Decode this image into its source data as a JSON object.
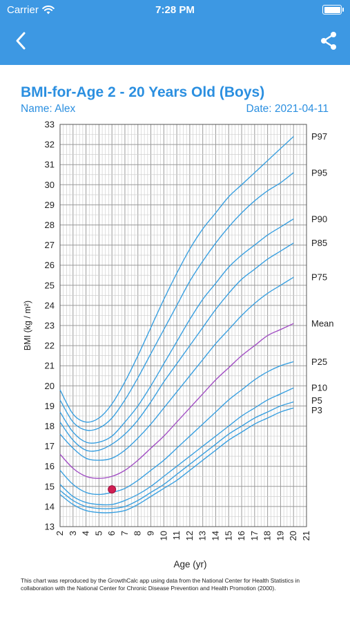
{
  "status_bar": {
    "carrier": "Carrier",
    "time": "7:28 PM",
    "wifi_icon": "wifi-icon",
    "battery_icon": "battery-icon"
  },
  "nav": {
    "back_icon": "chevron-left-icon",
    "share_icon": "share-icon",
    "background": "#3d98e3"
  },
  "header": {
    "title": "BMI-for-Age 2 - 20 Years Old (Boys)",
    "name": "Name: Alex",
    "date": "Date: 2021-04-11"
  },
  "footnote": "This chart was reproduced by the GrowthCalc app using data from the National Center for Health Statistics in collaboration with the National Center for Chronic Disease Prevention and Health Promotion (2000).",
  "chart_data": {
    "type": "line",
    "title": "BMI-for-Age 2 - 20 Years Old (Boys)",
    "xlabel": "Age (yr)",
    "ylabel": "BMI (kg / m²)",
    "xlim": [
      2,
      21
    ],
    "ylim": [
      13,
      33
    ],
    "x_ticks": [
      2,
      3,
      4,
      5,
      6,
      7,
      8,
      9,
      10,
      11,
      12,
      13,
      14,
      15,
      16,
      17,
      18,
      19,
      20,
      21
    ],
    "y_ticks": [
      13,
      14,
      15,
      16,
      17,
      18,
      19,
      20,
      21,
      22,
      23,
      24,
      25,
      26,
      27,
      28,
      29,
      30,
      31,
      32,
      33
    ],
    "grid": true,
    "legend": "right-labels",
    "x": [
      2,
      3,
      4,
      5,
      6,
      7,
      8,
      9,
      10,
      11,
      12,
      13,
      14,
      15,
      16,
      17,
      18,
      19,
      20
    ],
    "series": [
      {
        "name": "P97",
        "color": "#3aa0e0",
        "values": [
          19.8,
          18.6,
          18.2,
          18.4,
          19.1,
          20.2,
          21.5,
          22.9,
          24.3,
          25.6,
          26.8,
          27.8,
          28.6,
          29.4,
          30.0,
          30.6,
          31.2,
          31.8,
          32.4
        ]
      },
      {
        "name": "P95",
        "color": "#3aa0e0",
        "values": [
          19.3,
          18.2,
          17.8,
          17.9,
          18.4,
          19.3,
          20.4,
          21.6,
          22.8,
          24.0,
          25.2,
          26.2,
          27.1,
          27.9,
          28.6,
          29.2,
          29.7,
          30.1,
          30.6
        ]
      },
      {
        "name": "P90",
        "color": "#3aa0e0",
        "values": [
          18.7,
          17.7,
          17.2,
          17.2,
          17.5,
          18.2,
          19.0,
          20.0,
          21.1,
          22.2,
          23.3,
          24.3,
          25.1,
          25.9,
          26.5,
          27.0,
          27.5,
          27.9,
          28.3
        ]
      },
      {
        "name": "P85",
        "color": "#3aa0e0",
        "values": [
          18.2,
          17.3,
          16.8,
          16.8,
          17.1,
          17.6,
          18.3,
          19.2,
          20.2,
          21.1,
          22.0,
          22.9,
          23.8,
          24.6,
          25.3,
          25.8,
          26.3,
          26.7,
          27.1
        ]
      },
      {
        "name": "P75",
        "color": "#3aa0e0",
        "values": [
          17.6,
          16.9,
          16.4,
          16.3,
          16.4,
          16.8,
          17.4,
          18.1,
          18.9,
          19.7,
          20.5,
          21.3,
          22.1,
          22.8,
          23.5,
          24.1,
          24.6,
          25.0,
          25.4
        ]
      },
      {
        "name": "Mean",
        "color": "#a24fc4",
        "values": [
          16.6,
          15.9,
          15.5,
          15.4,
          15.5,
          15.8,
          16.3,
          16.9,
          17.5,
          18.2,
          18.9,
          19.6,
          20.3,
          20.9,
          21.5,
          22.0,
          22.5,
          22.8,
          23.1
        ]
      },
      {
        "name": "P25",
        "color": "#3aa0e0",
        "values": [
          15.8,
          15.1,
          14.7,
          14.6,
          14.7,
          14.9,
          15.3,
          15.8,
          16.3,
          16.9,
          17.5,
          18.1,
          18.7,
          19.3,
          19.8,
          20.3,
          20.7,
          21.0,
          21.2
        ]
      },
      {
        "name": "P10",
        "color": "#3aa0e0",
        "values": [
          15.1,
          14.5,
          14.2,
          14.1,
          14.1,
          14.3,
          14.6,
          15.0,
          15.5,
          16.0,
          16.5,
          17.0,
          17.5,
          18.0,
          18.5,
          18.9,
          19.3,
          19.6,
          19.9
        ]
      },
      {
        "name": "P5",
        "color": "#3aa0e0",
        "values": [
          14.8,
          14.3,
          14.0,
          13.9,
          13.9,
          14.0,
          14.3,
          14.7,
          15.1,
          15.6,
          16.1,
          16.6,
          17.1,
          17.6,
          18.0,
          18.4,
          18.7,
          19.0,
          19.2
        ]
      },
      {
        "name": "P3",
        "color": "#3aa0e0",
        "values": [
          14.6,
          14.1,
          13.8,
          13.7,
          13.7,
          13.8,
          14.1,
          14.5,
          14.9,
          15.3,
          15.8,
          16.3,
          16.8,
          17.3,
          17.7,
          18.1,
          18.4,
          18.7,
          18.9
        ]
      }
    ],
    "measurement": {
      "x": 6.0,
      "y": 14.85,
      "color": "#d01f52"
    }
  }
}
